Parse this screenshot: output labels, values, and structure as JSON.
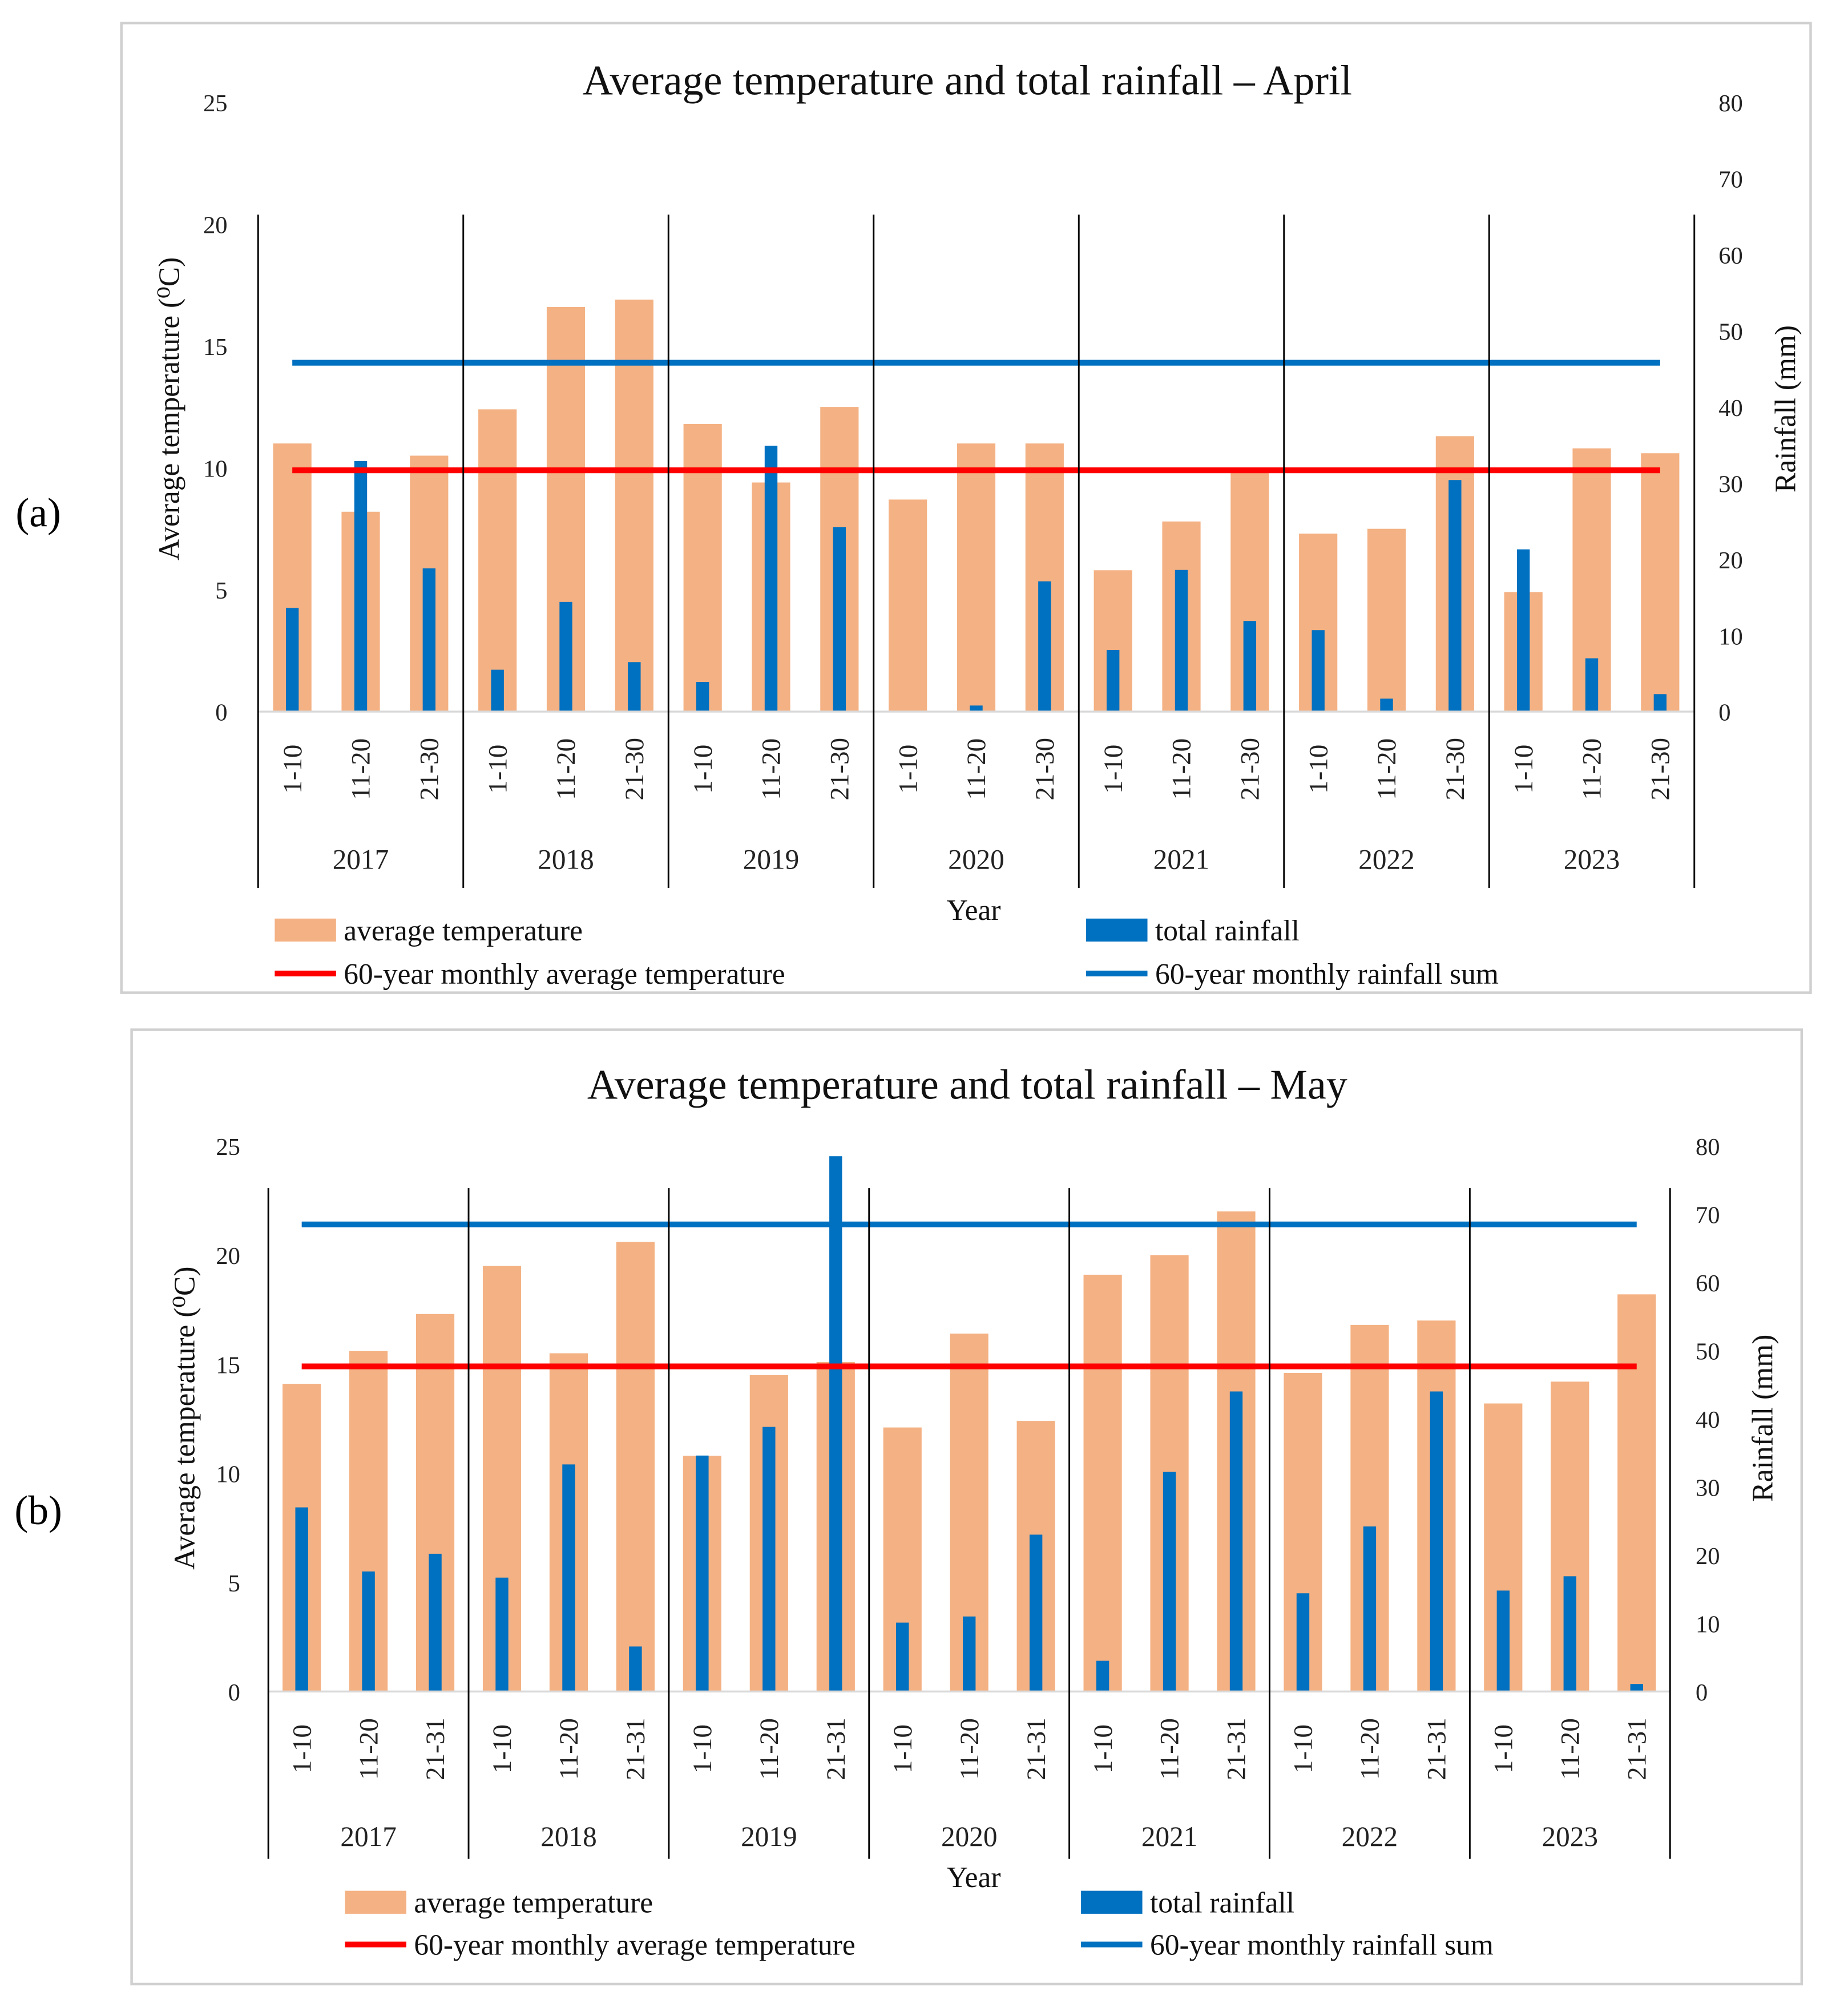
{
  "colors": {
    "temp_bar": "#F4B183",
    "rain_bar": "#0070C0",
    "temp_line": "#FF0000",
    "rain_line": "#0070C0"
  },
  "chart_data": [
    {
      "panel": "(a)",
      "type": "bar",
      "title": "Average temperature and total rainfall – April",
      "xlabel": "Year",
      "ylabel": "Average temperature (⁰C)",
      "y2label": "Rainfall (mm)",
      "ylim": [
        0,
        25
      ],
      "yticks": [
        0,
        5,
        10,
        15,
        20,
        25
      ],
      "y2lim": [
        0,
        80
      ],
      "y2ticks": [
        0,
        10,
        20,
        30,
        40,
        50,
        60,
        70,
        80
      ],
      "years": [
        "2017",
        "2018",
        "2019",
        "2020",
        "2021",
        "2022",
        "2023"
      ],
      "periods": [
        "1-10",
        "11-20",
        "21-30"
      ],
      "series": [
        {
          "name": "average temperature",
          "axis": "left",
          "kind": "bar",
          "values": [
            11.0,
            8.2,
            10.5,
            12.4,
            16.6,
            16.9,
            11.8,
            9.4,
            12.5,
            8.7,
            11.0,
            11.0,
            5.8,
            7.8,
            9.9,
            7.3,
            7.5,
            11.3,
            4.9,
            10.8,
            10.6
          ]
        },
        {
          "name": "total rainfall",
          "axis": "right",
          "kind": "bar",
          "values": [
            13.6,
            32.9,
            18.8,
            5.5,
            14.4,
            6.5,
            3.9,
            34.9,
            24.2,
            0.0,
            0.8,
            17.1,
            8.1,
            18.6,
            11.9,
            10.7,
            1.7,
            30.4,
            21.3,
            7.0,
            2.3
          ]
        },
        {
          "name": "60-year monthly average temperature",
          "axis": "left",
          "kind": "line",
          "value": 9.9
        },
        {
          "name": "60-year monthly rainfall sum",
          "axis": "right",
          "kind": "line",
          "value": 45.8
        }
      ]
    },
    {
      "panel": "(b)",
      "type": "bar",
      "title": "Average temperature and total rainfall – May",
      "xlabel": "Year",
      "ylabel": "Average temperature (⁰C)",
      "y2label": "Rainfall (mm)",
      "ylim": [
        0,
        25
      ],
      "yticks": [
        0,
        5,
        10,
        15,
        20,
        25
      ],
      "y2lim": [
        0,
        80
      ],
      "y2ticks": [
        0,
        10,
        20,
        30,
        40,
        50,
        60,
        70,
        80
      ],
      "years": [
        "2017",
        "2018",
        "2019",
        "2020",
        "2021",
        "2022",
        "2023"
      ],
      "periods": [
        "1-10",
        "11-20",
        "21-31"
      ],
      "series": [
        {
          "name": "average temperature",
          "axis": "left",
          "kind": "bar",
          "values": [
            14.1,
            15.6,
            17.3,
            19.5,
            15.5,
            20.6,
            10.8,
            14.5,
            15.1,
            12.1,
            16.4,
            12.4,
            19.1,
            20.0,
            22.0,
            14.6,
            16.8,
            17.0,
            13.2,
            14.2,
            18.2
          ]
        },
        {
          "name": "total rainfall",
          "axis": "right",
          "kind": "bar",
          "values": [
            27.0,
            17.6,
            20.2,
            16.7,
            33.3,
            6.6,
            34.6,
            38.8,
            78.5,
            10.1,
            11.0,
            23.0,
            4.5,
            32.2,
            44.0,
            14.4,
            24.2,
            44.0,
            14.8,
            16.9,
            1.1
          ]
        },
        {
          "name": "60-year monthly average temperature",
          "axis": "left",
          "kind": "line",
          "value": 14.9
        },
        {
          "name": "60-year monthly rainfall sum",
          "axis": "right",
          "kind": "line",
          "value": 68.5
        }
      ]
    }
  ]
}
